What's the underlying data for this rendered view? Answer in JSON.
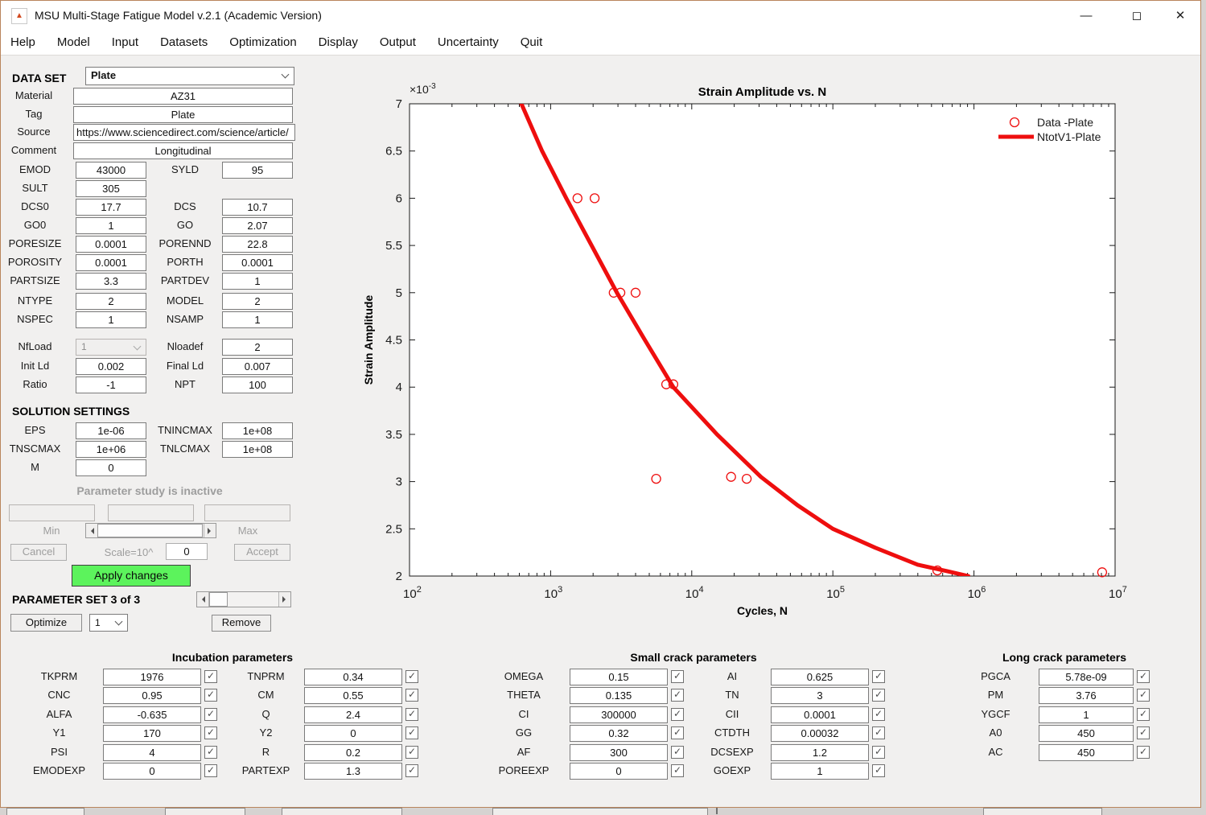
{
  "window": {
    "title": "MSU Multi-Stage Fatigue Model v.2.1 (Academic Version)",
    "minimize": "—",
    "maximize": "◻",
    "close": "✕",
    "menu": [
      "Help",
      "Model",
      "Input",
      "Datasets",
      "Optimization",
      "Display",
      "Output",
      "Uncertainty",
      "Quit"
    ]
  },
  "dataset": {
    "label": "DATA SET",
    "selector_value": "Plate",
    "fields": [
      {
        "label": "Material",
        "value": "AZ31"
      },
      {
        "label": "Tag",
        "value": "Plate"
      },
      {
        "label": "Source",
        "value": "https://www.sciencedirect.com/science/article/"
      },
      {
        "label": "Comment",
        "value": "Longitudinal"
      }
    ]
  },
  "material_rows": [
    {
      "l1": "EMOD",
      "v1": "43000",
      "l2": "SYLD",
      "v2": "95"
    },
    {
      "l1": "SULT",
      "v1": "305",
      "l2": "",
      "v2": ""
    },
    {
      "l1": "DCS0",
      "v1": "17.7",
      "l2": "DCS",
      "v2": "10.7"
    },
    {
      "l1": "GO0",
      "v1": "1",
      "l2": "GO",
      "v2": "2.07"
    },
    {
      "l1": "PORESIZE",
      "v1": "0.0001",
      "l2": "PORENND",
      "v2": "22.8"
    },
    {
      "l1": "POROSITY",
      "v1": "0.0001",
      "l2": "PORTH",
      "v2": "0.0001"
    },
    {
      "l1": "PARTSIZE",
      "v1": "3.3",
      "l2": "PARTDEV",
      "v2": "1"
    }
  ],
  "model_rows": [
    {
      "l1": "NTYPE",
      "v1": "2",
      "l2": "MODEL",
      "v2": "2"
    },
    {
      "l1": "NSPEC",
      "v1": "1",
      "l2": "NSAMP",
      "v2": "1"
    }
  ],
  "load_rows": [
    {
      "l1": "NfLoad",
      "v1": "1",
      "t1": "select_disabled",
      "l2": "Nloadef",
      "v2": "2"
    },
    {
      "l1": "Init Ld",
      "v1": "0.002",
      "l2": "Final Ld",
      "v2": "0.007"
    },
    {
      "l1": "Ratio",
      "v1": "-1",
      "l2": "NPT",
      "v2": "100"
    }
  ],
  "solution": {
    "heading": "SOLUTION SETTINGS",
    "rows": [
      {
        "l1": "EPS",
        "v1": "1e-06",
        "l2": "TNINCMAX",
        "v2": "1e+08"
      },
      {
        "l1": "TNSCMAX",
        "v1": "1e+06",
        "l2": "TNLCMAX",
        "v2": "1e+08"
      },
      {
        "l1": "M",
        "v1": "0",
        "l2": "",
        "v2": ""
      }
    ]
  },
  "param_study": {
    "status": "Parameter study is inactive",
    "min_label": "Min",
    "max_label": "Max",
    "cancel": "Cancel",
    "scale_label": "Scale=10^",
    "scale_value": "0",
    "accept": "Accept",
    "apply": "Apply changes"
  },
  "parameter_set": {
    "heading": "PARAMETER SET 3 of 3",
    "optimize": "Optimize",
    "selector_value": "1",
    "remove": "Remove"
  },
  "groups": [
    {
      "title": "Incubation parameters",
      "col1": [
        {
          "label": "TKPRM",
          "value": "1976",
          "checked": true
        },
        {
          "label": "CNC",
          "value": "0.95",
          "checked": true
        },
        {
          "label": "ALFA",
          "value": "-0.635",
          "checked": true
        },
        {
          "label": "Y1",
          "value": "170",
          "checked": true
        },
        {
          "label": "PSI",
          "value": "4",
          "checked": true
        },
        {
          "label": "EMODEXP",
          "value": "0",
          "checked": true
        }
      ],
      "col2": [
        {
          "label": "TNPRM",
          "value": "0.34",
          "checked": true
        },
        {
          "label": "CM",
          "value": "0.55",
          "checked": true
        },
        {
          "label": "Q",
          "value": "2.4",
          "checked": true
        },
        {
          "label": "Y2",
          "value": "0",
          "checked": true
        },
        {
          "label": "R",
          "value": "0.2",
          "checked": true
        },
        {
          "label": "PARTEXP",
          "value": "1.3",
          "checked": true
        }
      ]
    },
    {
      "title": "Small crack parameters",
      "col1": [
        {
          "label": "OMEGA",
          "value": "0.15",
          "checked": true
        },
        {
          "label": "THETA",
          "value": "0.135",
          "checked": true
        },
        {
          "label": "CI",
          "value": "300000",
          "checked": true
        },
        {
          "label": "GG",
          "value": "0.32",
          "checked": true
        },
        {
          "label": "AF",
          "value": "300",
          "checked": true
        },
        {
          "label": "POREEXP",
          "value": "0",
          "checked": true
        }
      ],
      "col2": [
        {
          "label": "AI",
          "value": "0.625",
          "checked": true
        },
        {
          "label": "TN",
          "value": "3",
          "checked": true
        },
        {
          "label": "CII",
          "value": "0.0001",
          "checked": true
        },
        {
          "label": "CTDTH",
          "value": "0.00032",
          "checked": true
        },
        {
          "label": "DCSEXP",
          "value": "1.2",
          "checked": true
        },
        {
          "label": "GOEXP",
          "value": "1",
          "checked": true
        }
      ]
    },
    {
      "title": "Long crack parameters",
      "col1": [
        {
          "label": "PGCA",
          "value": "5.78e-09",
          "checked": true
        },
        {
          "label": "PM",
          "value": "3.76",
          "checked": true
        },
        {
          "label": "YGCF",
          "value": "1",
          "checked": true
        },
        {
          "label": "A0",
          "value": "450",
          "checked": true
        },
        {
          "label": "AC",
          "value": "450",
          "checked": true
        }
      ],
      "col2": []
    }
  ],
  "chart_data": {
    "type": "line",
    "title": "Strain Amplitude vs. N",
    "xlabel": "Cycles, N",
    "ylabel": "Strain Amplitude",
    "x_scale": "log",
    "xlim": [
      100,
      10000000
    ],
    "ylim": [
      0.002,
      0.007
    ],
    "y_exponent_note": {
      "base": "×10",
      "exp": "-3"
    },
    "x_tick_exponents": [
      2,
      3,
      4,
      5,
      6,
      7
    ],
    "y_ticks": [
      2,
      2.5,
      3,
      3.5,
      4,
      4.5,
      5,
      5.5,
      6,
      6.5,
      7
    ],
    "grid": false,
    "legend_position": "top-right",
    "accent_color": "#ee0e0e",
    "series": [
      {
        "name": "Data -Plate",
        "type": "scatter",
        "marker": "circle",
        "color": "#ee0e0e",
        "points": [
          [
            1550,
            0.006
          ],
          [
            2050,
            0.006
          ],
          [
            2800,
            0.005
          ],
          [
            3120,
            0.005
          ],
          [
            4000,
            0.005
          ],
          [
            6600,
            0.00403
          ],
          [
            7400,
            0.00403
          ],
          [
            5600,
            0.00303
          ],
          [
            19000,
            0.00305
          ],
          [
            24500,
            0.00303
          ],
          [
            550000,
            0.00206
          ],
          [
            8100000,
            0.00204
          ]
        ]
      },
      {
        "name": "NtotV1-Plate",
        "type": "line",
        "color": "#ee0e0e",
        "points": [
          [
            600,
            0.00705
          ],
          [
            870,
            0.0065
          ],
          [
            1290,
            0.006
          ],
          [
            1950,
            0.0055
          ],
          [
            2950,
            0.005
          ],
          [
            4650,
            0.0045
          ],
          [
            7400,
            0.004
          ],
          [
            15100,
            0.0035
          ],
          [
            30900,
            0.00305
          ],
          [
            56200,
            0.00275
          ],
          [
            100000,
            0.0025
          ],
          [
            200000,
            0.0023
          ],
          [
            400000,
            0.00212
          ],
          [
            650000,
            0.00205
          ],
          [
            912000,
            0.002
          ]
        ]
      }
    ]
  }
}
